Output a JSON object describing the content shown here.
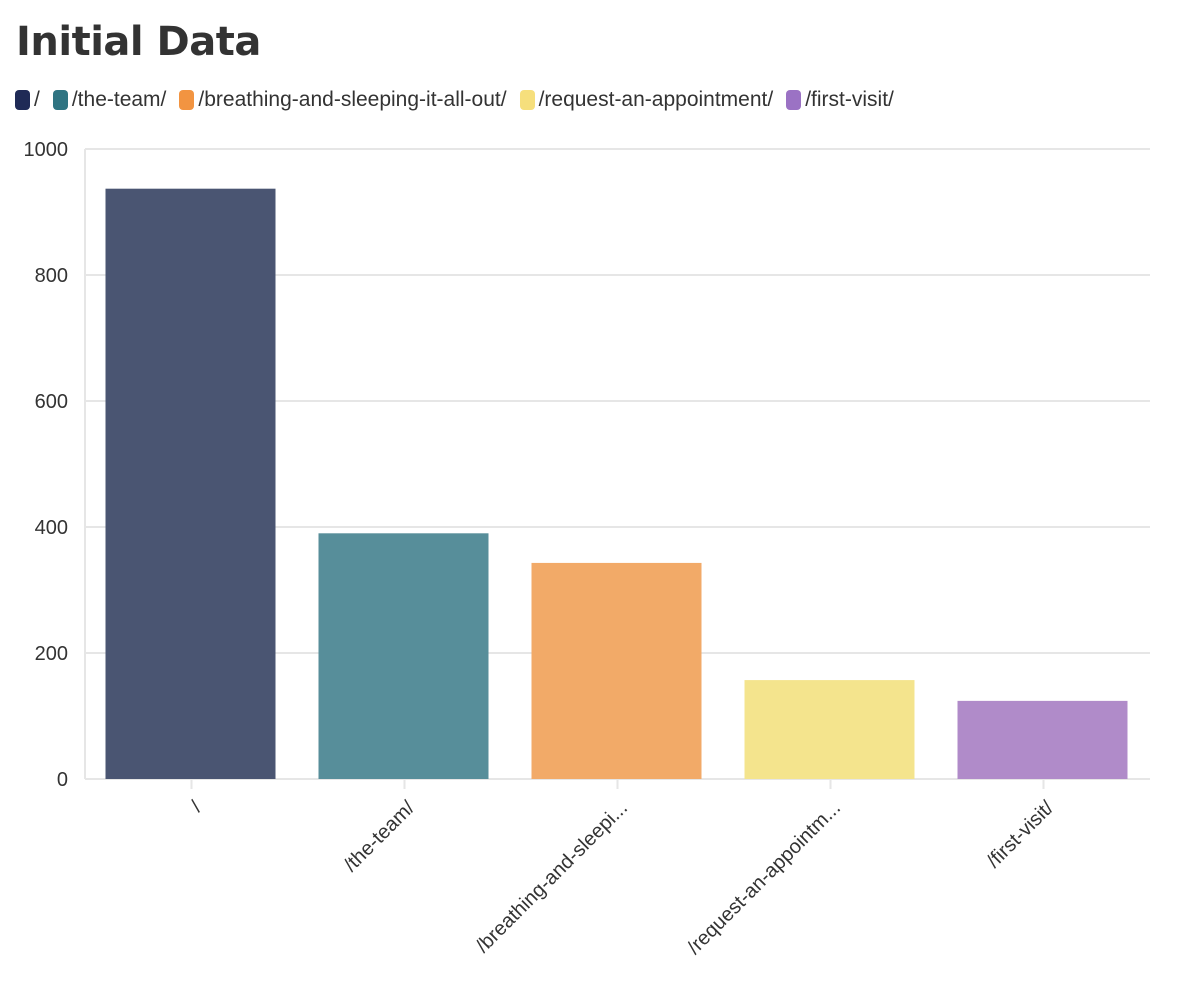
{
  "chart_data": {
    "type": "bar",
    "title": "Initial Data",
    "categories": [
      "/",
      "/the-team/",
      "/breathing-and-sleeping-it-all-out/",
      "/request-an-appointment/",
      "/first-visit/"
    ],
    "category_tick_labels": [
      "/",
      "/the-team/",
      "/breathing-and-sleepi...",
      "/request-an-appointm...",
      "/first-visit/"
    ],
    "values": [
      937,
      390,
      343,
      157,
      124
    ],
    "colors": [
      "#4a5572",
      "#578e9a",
      "#f2aa68",
      "#f4e48d",
      "#b08bc9"
    ],
    "legend": [
      {
        "label": "/",
        "color": "#1f2a56"
      },
      {
        "label": "/the-team/",
        "color": "#2f7482"
      },
      {
        "label": "/breathing-and-sleeping-it-all-out/",
        "color": "#f29441"
      },
      {
        "label": "/request-an-appointment/",
        "color": "#f6df7c"
      },
      {
        "label": "/first-visit/",
        "color": "#9b72c4"
      }
    ],
    "legend_position": "top-left",
    "ylim": [
      0,
      1000
    ],
    "yticks": [
      0,
      200,
      400,
      600,
      800,
      1000
    ],
    "grid": true,
    "xlabel": "",
    "ylabel": ""
  }
}
